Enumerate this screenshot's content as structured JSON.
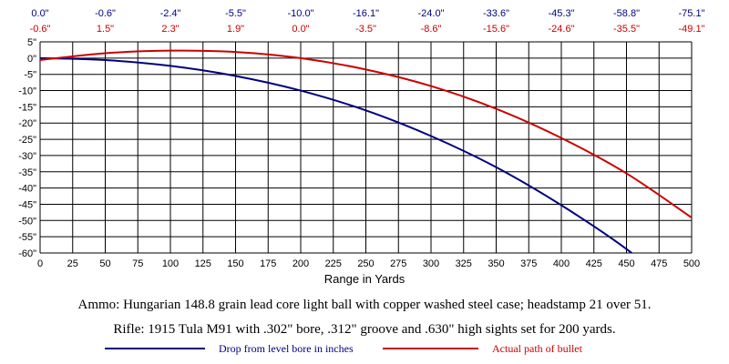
{
  "chart_data": {
    "type": "line",
    "xlabel": "Range in Yards",
    "x_ticks": [
      0,
      25,
      50,
      75,
      100,
      125,
      150,
      175,
      200,
      225,
      250,
      275,
      300,
      325,
      350,
      375,
      400,
      425,
      450,
      475,
      500
    ],
    "y_ticks": [
      "5\"",
      "0\"",
      "-5\"",
      "-10\"",
      "-15\"",
      "-20\"",
      "-25\"",
      "-30\"",
      "-35\"",
      "-40\"",
      "-45\"",
      "-50\"",
      "-55\"",
      "-60\""
    ],
    "y_tick_values": [
      5,
      0,
      -5,
      -10,
      -15,
      -20,
      -25,
      -30,
      -35,
      -40,
      -45,
      -50,
      -55,
      -60
    ],
    "xlim": [
      0,
      500
    ],
    "ylim": [
      -60,
      5
    ],
    "grid": true,
    "top_row_drop": {
      "x": [
        0,
        50,
        100,
        150,
        200,
        250,
        300,
        350,
        400,
        450,
        500
      ],
      "labels": [
        "0.0\"",
        "-0.6\"",
        "-2.4\"",
        "-5.5\"",
        "-10.0\"",
        "-16.1\"",
        "-24.0\"",
        "-33.6\"",
        "-45.3\"",
        "-58.8\"",
        "-75.1\""
      ]
    },
    "top_row_path": {
      "x": [
        0,
        50,
        100,
        150,
        200,
        250,
        300,
        350,
        400,
        450,
        500
      ],
      "labels": [
        "-0.6\"",
        "1.5\"",
        "2.3\"",
        "1.9\"",
        "0.0\"",
        "-3.5\"",
        "-8.6\"",
        "-15.6\"",
        "-24.6\"",
        "-35.5\"",
        "-49.1\""
      ]
    },
    "series": [
      {
        "name": "Drop from level bore in inches",
        "color": "#000080",
        "x": [
          0,
          50,
          100,
          150,
          200,
          250,
          300,
          350,
          400,
          450,
          500
        ],
        "y": [
          0.0,
          -0.6,
          -2.4,
          -5.5,
          -10.0,
          -16.1,
          -24.0,
          -33.6,
          -45.3,
          -58.8,
          -75.1
        ]
      },
      {
        "name": "Actual path of bullet",
        "color": "#cc0000",
        "x": [
          0,
          50,
          100,
          150,
          200,
          250,
          300,
          350,
          400,
          450,
          500
        ],
        "y": [
          -0.6,
          1.5,
          2.3,
          1.9,
          0.0,
          -3.5,
          -8.6,
          -15.6,
          -24.6,
          -35.5,
          -49.1
        ]
      }
    ]
  },
  "caption": {
    "ammo": "Ammo:  Hungarian 148.8 grain lead core light ball with copper washed steel case; headstamp 21 over 51.",
    "rifle": "Rifle:  1915 Tula M91 with .302\" bore, .312\" groove and .630\" high sights set for 200 yards."
  },
  "legend": {
    "drop": "Drop from level bore in inches",
    "path": "Actual path of bullet"
  }
}
